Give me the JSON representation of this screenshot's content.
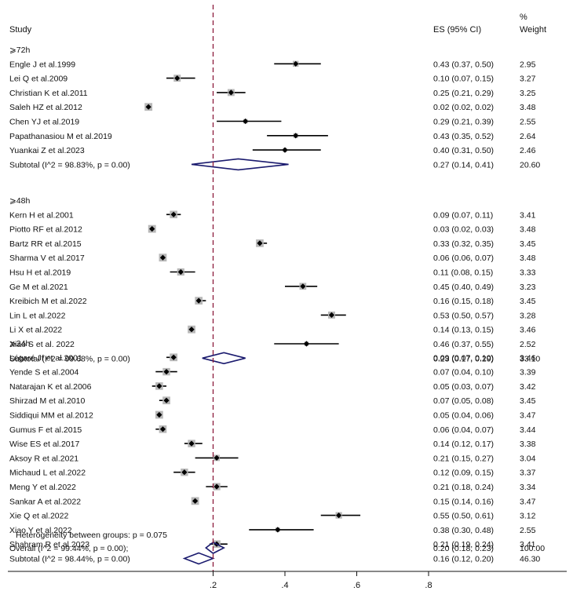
{
  "headers": {
    "study": "Study",
    "es": "ES (95% CI)",
    "weight_pct": "%",
    "weight": "Weight"
  },
  "chart_data": {
    "type": "forest",
    "xlim": [
      0,
      0.9
    ],
    "ticks": [
      {
        "value": 0.2,
        "label": ".2"
      },
      {
        "value": 0.4,
        "label": ".4"
      },
      {
        "value": 0.6,
        "label": ".6"
      },
      {
        "value": 0.8,
        "label": ".8"
      }
    ],
    "reference_line": 0.2,
    "heterogeneity_between_groups": "Heterogeneity between groups: p = 0.075",
    "overall": {
      "label": "Overall  (I^2 = 99.44%, p = 0.00);",
      "es": 0.2,
      "lo": 0.18,
      "hi": 0.23,
      "text": "0.20 (0.18, 0.23)",
      "weight": "100.00"
    },
    "groups": [
      {
        "name": "⩾72h",
        "studies": [
          {
            "label": "Engle J et al.1999",
            "es": 0.43,
            "lo": 0.37,
            "hi": 0.5,
            "text": "0.43 (0.37, 0.50)",
            "weight": "2.95"
          },
          {
            "label": "Lei Q et al.2009",
            "es": 0.1,
            "lo": 0.07,
            "hi": 0.15,
            "text": "0.10 (0.07, 0.15)",
            "weight": "3.27"
          },
          {
            "label": "Christian K et al.2011",
            "es": 0.25,
            "lo": 0.21,
            "hi": 0.29,
            "text": "0.25 (0.21, 0.29)",
            "weight": "3.25"
          },
          {
            "label": "Saleh HZ et al.2012",
            "es": 0.02,
            "lo": 0.02,
            "hi": 0.02,
            "text": "0.02 (0.02, 0.02)",
            "weight": "3.48"
          },
          {
            "label": "Chen YJ et al.2019",
            "es": 0.29,
            "lo": 0.21,
            "hi": 0.39,
            "text": "0.29 (0.21, 0.39)",
            "weight": "2.55"
          },
          {
            "label": "Papathanasiou M et al.2019",
            "es": 0.43,
            "lo": 0.35,
            "hi": 0.52,
            "text": "0.43 (0.35, 0.52)",
            "weight": "2.64"
          },
          {
            "label": "Yuankai Z et al.2023",
            "es": 0.4,
            "lo": 0.31,
            "hi": 0.5,
            "text": "0.40 (0.31, 0.50)",
            "weight": "2.46"
          }
        ],
        "subtotal": {
          "label": "Subtotal  (I^2 = 98.83%, p = 0.00)",
          "es": 0.27,
          "lo": 0.14,
          "hi": 0.41,
          "text": "0.27 (0.14, 0.41)",
          "weight": "20.60"
        }
      },
      {
        "name": "⩾48h",
        "studies": [
          {
            "label": "Kern H et al.2001",
            "es": 0.09,
            "lo": 0.07,
            "hi": 0.11,
            "text": "0.09 (0.07, 0.11)",
            "weight": "3.41"
          },
          {
            "label": "Piotto RF et al.2012",
            "es": 0.03,
            "lo": 0.02,
            "hi": 0.03,
            "text": "0.03 (0.02, 0.03)",
            "weight": "3.48"
          },
          {
            "label": "Bartz RR et al.2015",
            "es": 0.33,
            "lo": 0.32,
            "hi": 0.35,
            "text": "0.33 (0.32, 0.35)",
            "weight": "3.45"
          },
          {
            "label": "Sharma V et al.2017",
            "es": 0.06,
            "lo": 0.06,
            "hi": 0.07,
            "text": "0.06 (0.06, 0.07)",
            "weight": "3.48"
          },
          {
            "label": "Hsu H et al.2019",
            "es": 0.11,
            "lo": 0.08,
            "hi": 0.15,
            "text": "0.11 (0.08, 0.15)",
            "weight": "3.33"
          },
          {
            "label": "Ge M et al.2021",
            "es": 0.45,
            "lo": 0.4,
            "hi": 0.49,
            "text": "0.45 (0.40, 0.49)",
            "weight": "3.23"
          },
          {
            "label": "Kreibich M et al.2022",
            "es": 0.16,
            "lo": 0.15,
            "hi": 0.18,
            "text": "0.16 (0.15, 0.18)",
            "weight": "3.45"
          },
          {
            "label": "Lin L et al.2022",
            "es": 0.53,
            "lo": 0.5,
            "hi": 0.57,
            "text": "0.53 (0.50, 0.57)",
            "weight": "3.28"
          },
          {
            "label": "Li X et al.2022",
            "es": 0.14,
            "lo": 0.13,
            "hi": 0.15,
            "text": "0.14 (0.13, 0.15)",
            "weight": "3.46"
          },
          {
            "label": "Xiao S et al. 2022",
            "es": 0.46,
            "lo": 0.37,
            "hi": 0.55,
            "text": "0.46 (0.37, 0.55)",
            "weight": "2.52"
          }
        ],
        "subtotal": {
          "label": "Subtotal  (I^2 = 99.68%, p = 0.00)",
          "es": 0.23,
          "lo": 0.17,
          "hi": 0.29,
          "text": "0.23 (0.17, 0.29)",
          "weight": "33.10"
        }
      },
      {
        "name": "⩾24h",
        "studies": [
          {
            "label": "Légaré Jf et al.2001",
            "es": 0.09,
            "lo": 0.07,
            "hi": 0.1,
            "text": "0.09 (0.07, 0.10)",
            "weight": "3.46"
          },
          {
            "label": "Yende S et al.2004",
            "es": 0.07,
            "lo": 0.04,
            "hi": 0.1,
            "text": "0.07 (0.04, 0.10)",
            "weight": "3.39"
          },
          {
            "label": "Natarajan K et al.2006",
            "es": 0.05,
            "lo": 0.03,
            "hi": 0.07,
            "text": "0.05 (0.03, 0.07)",
            "weight": "3.42"
          },
          {
            "label": "Shirzad M et al.2010",
            "es": 0.07,
            "lo": 0.05,
            "hi": 0.08,
            "text": "0.07 (0.05, 0.08)",
            "weight": "3.45"
          },
          {
            "label": "Siddiqui MM et al.2012",
            "es": 0.05,
            "lo": 0.04,
            "hi": 0.06,
            "text": "0.05 (0.04, 0.06)",
            "weight": "3.47"
          },
          {
            "label": "Gumus F et al.2015",
            "es": 0.06,
            "lo": 0.04,
            "hi": 0.07,
            "text": "0.06 (0.04, 0.07)",
            "weight": "3.44"
          },
          {
            "label": "Wise ES et al.2017",
            "es": 0.14,
            "lo": 0.12,
            "hi": 0.17,
            "text": "0.14 (0.12, 0.17)",
            "weight": "3.38"
          },
          {
            "label": "Aksoy R et al.2021",
            "es": 0.21,
            "lo": 0.15,
            "hi": 0.27,
            "text": "0.21 (0.15, 0.27)",
            "weight": "3.04"
          },
          {
            "label": "Michaud L et al.2022",
            "es": 0.12,
            "lo": 0.09,
            "hi": 0.15,
            "text": "0.12 (0.09, 0.15)",
            "weight": "3.37"
          },
          {
            "label": "Meng Y et al.2022",
            "es": 0.21,
            "lo": 0.18,
            "hi": 0.24,
            "text": "0.21 (0.18, 0.24)",
            "weight": "3.34"
          },
          {
            "label": "Sankar A et al.2022",
            "es": 0.15,
            "lo": 0.14,
            "hi": 0.16,
            "text": "0.15 (0.14, 0.16)",
            "weight": "3.47"
          },
          {
            "label": "Xie Q et al.2022",
            "es": 0.55,
            "lo": 0.5,
            "hi": 0.61,
            "text": "0.55 (0.50, 0.61)",
            "weight": "3.12"
          },
          {
            "label": "Xiao Y et al.2022",
            "es": 0.38,
            "lo": 0.3,
            "hi": 0.48,
            "text": "0.38 (0.30, 0.48)",
            "weight": "2.55"
          },
          {
            "label": "Shahram R et al.2023",
            "es": 0.21,
            "lo": 0.19,
            "hi": 0.24,
            "text": "0.21 (0.19, 0.24)",
            "weight": "3.41"
          }
        ],
        "subtotal": {
          "label": "Subtotal  (I^2 = 98.44%, p = 0.00)",
          "es": 0.16,
          "lo": 0.12,
          "hi": 0.2,
          "text": "0.16 (0.12, 0.20)",
          "weight": "46.30"
        }
      }
    ],
    "colors": {
      "diamond": "#1a1a6e",
      "reference_line": "#8b1a3a",
      "weight_box": "#b8b8b8",
      "point": "#000000"
    }
  }
}
